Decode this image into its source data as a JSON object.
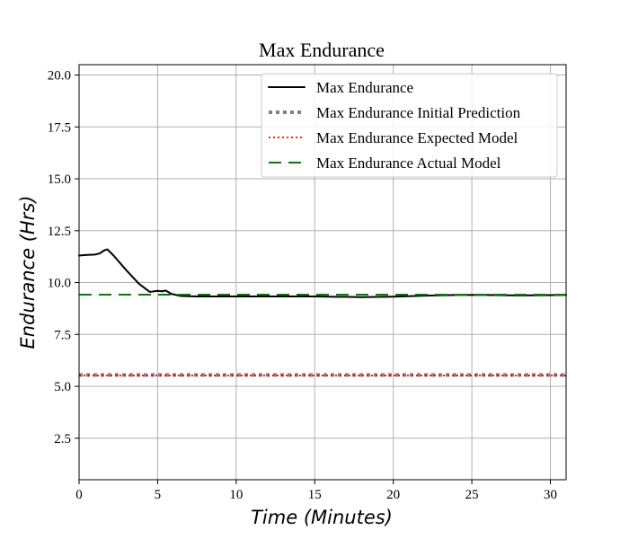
{
  "chart_data": {
    "type": "line",
    "title": "Max Endurance",
    "xlabel": "Time (Minutes)",
    "ylabel": "Endurance (Hrs)",
    "xlim": [
      0,
      31
    ],
    "ylim": [
      0.5,
      20.5
    ],
    "xticks": [
      0,
      5,
      10,
      15,
      20,
      25,
      30
    ],
    "yticks": [
      2.5,
      5.0,
      7.5,
      10.0,
      12.5,
      15.0,
      17.5,
      20.0
    ],
    "ytick_labels": [
      "2.5",
      "5.0",
      "7.5",
      "10.0",
      "12.5",
      "15.0",
      "17.5",
      "20.0"
    ],
    "grid": true,
    "legend_position": "top-right",
    "series": [
      {
        "name": "Max Endurance",
        "color": "#000000",
        "style": "solid",
        "x": [
          0,
          0.4,
          1.0,
          1.3,
          1.6,
          1.8,
          2.2,
          3.0,
          3.8,
          4.5,
          5.0,
          5.3,
          5.5,
          5.9,
          6.5,
          7.5,
          10,
          15,
          18,
          20,
          22,
          24,
          26,
          28,
          31
        ],
        "y": [
          11.3,
          11.33,
          11.35,
          11.4,
          11.55,
          11.6,
          11.3,
          10.6,
          9.95,
          9.55,
          9.6,
          9.58,
          9.62,
          9.45,
          9.35,
          9.33,
          9.33,
          9.33,
          9.3,
          9.32,
          9.37,
          9.4,
          9.4,
          9.38,
          9.4
        ]
      },
      {
        "name": "Max Endurance Initial Prediction",
        "color": "#808080",
        "style": "dotted-thick",
        "x": [
          0,
          31
        ],
        "y": [
          5.55,
          5.55
        ]
      },
      {
        "name": "Max Endurance Expected Model",
        "color": "#ff0000",
        "style": "dotted",
        "x": [
          0,
          31
        ],
        "y": [
          5.52,
          5.52
        ]
      },
      {
        "name": "Max Endurance Actual Model",
        "color": "#008000",
        "style": "dashed",
        "x": [
          0,
          31
        ],
        "y": [
          9.42,
          9.42
        ]
      }
    ]
  }
}
